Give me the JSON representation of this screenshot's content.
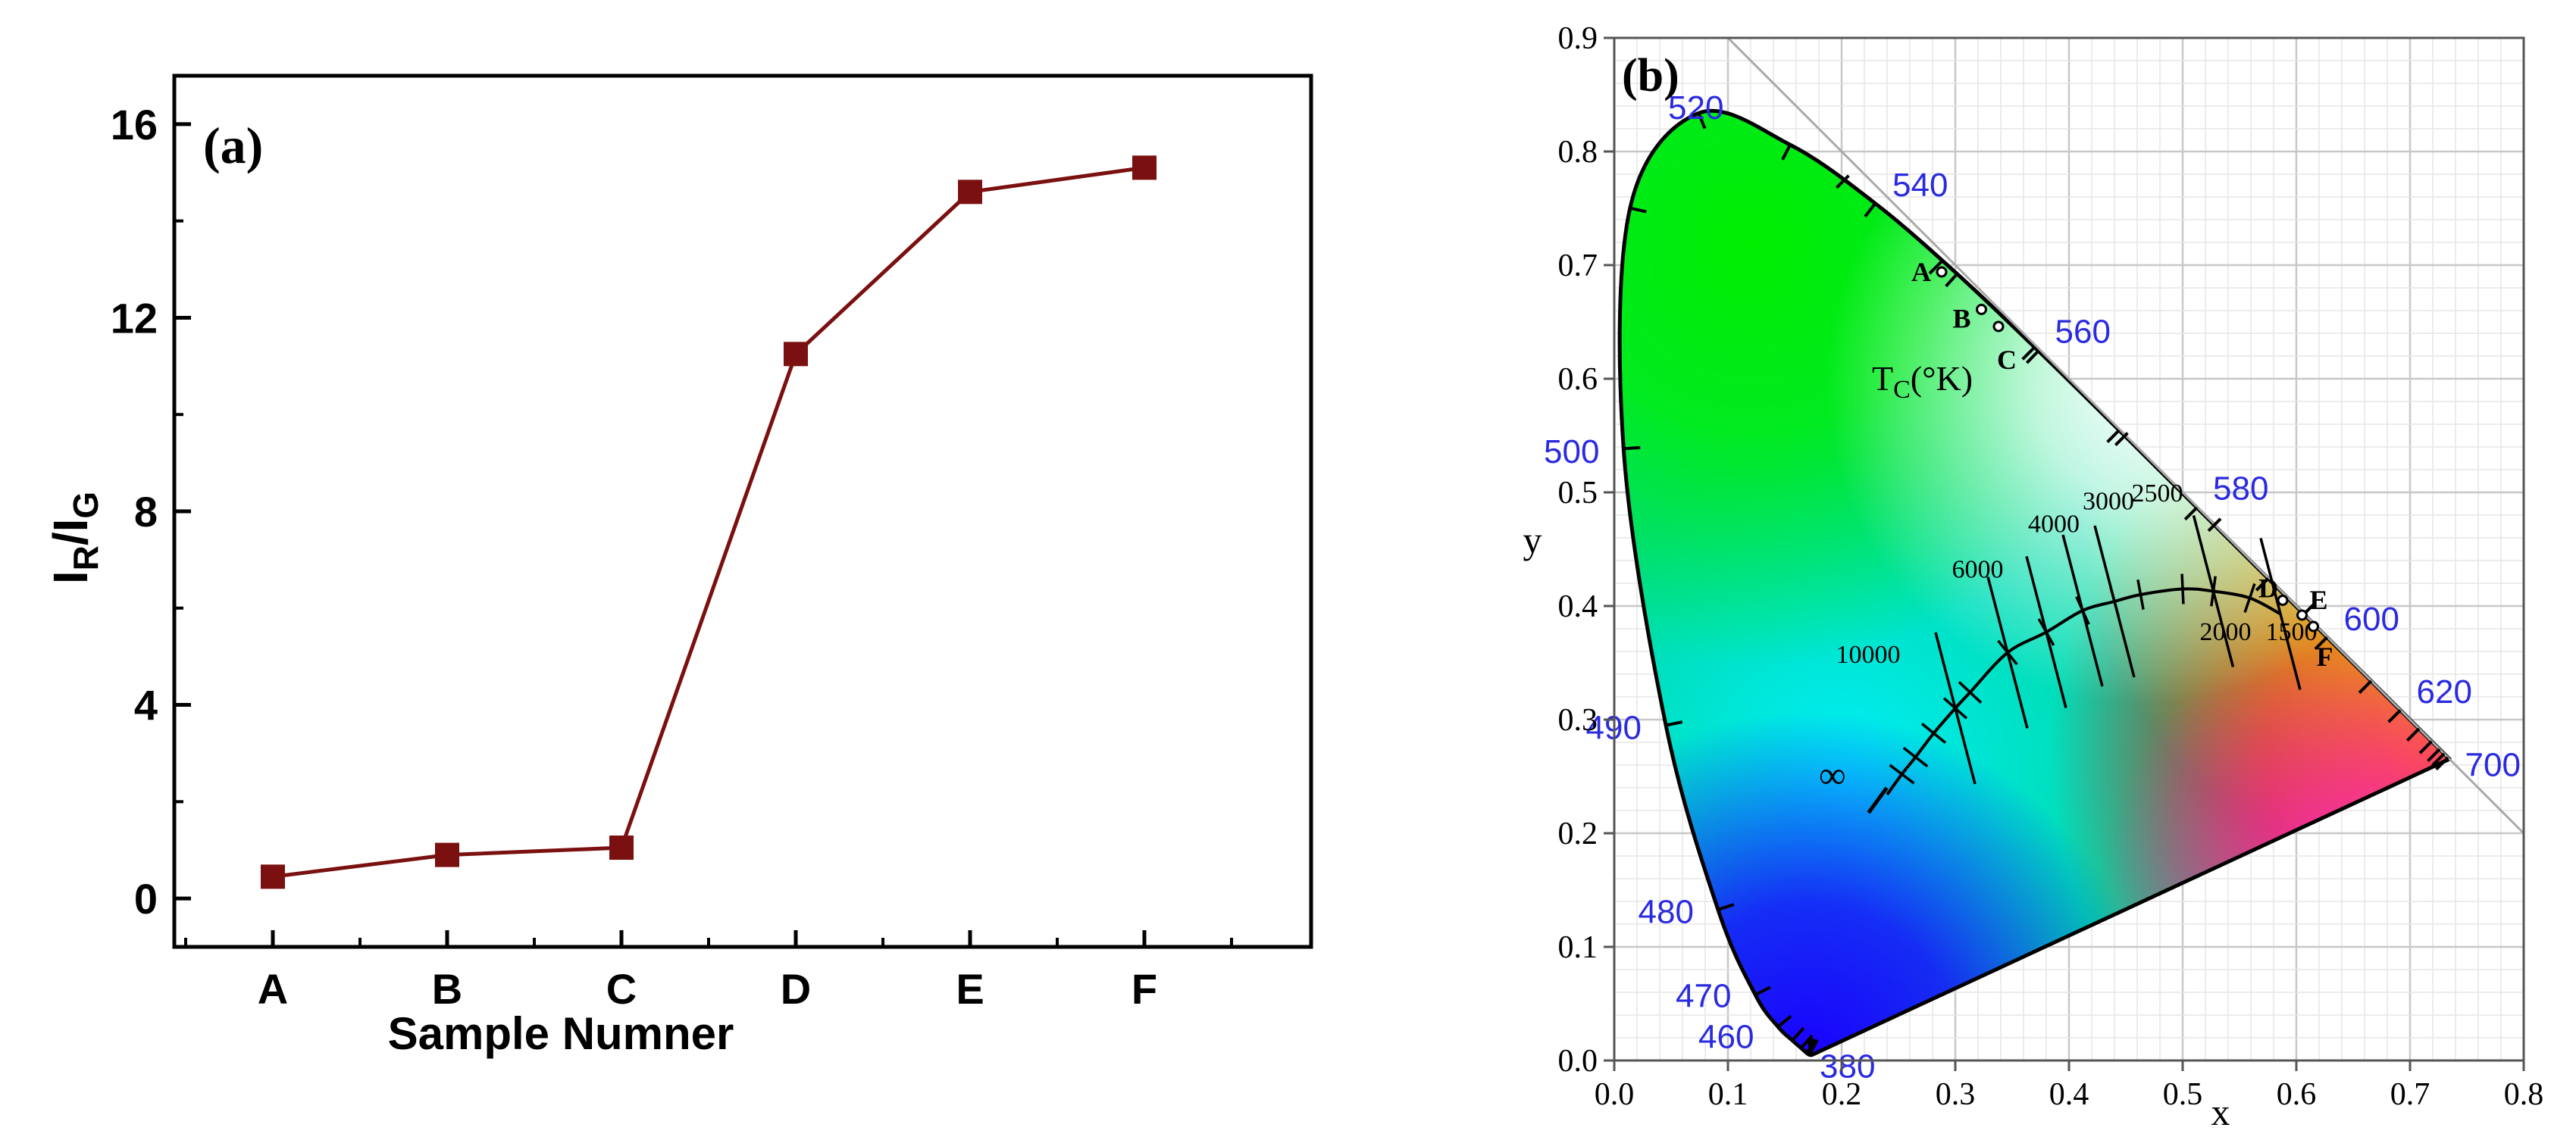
{
  "chart_data": [
    {
      "type": "line",
      "panel_label": "(a)",
      "xlabel": "Sample  Numner",
      "ylabel_main": "I",
      "ylabel_sub1": "R",
      "ylabel_slash": "/I",
      "ylabel_sub2": "G",
      "categories": [
        "A",
        "B",
        "C",
        "D",
        "E",
        "F"
      ],
      "series": [
        {
          "values": [
            0.45,
            0.9,
            1.05,
            11.25,
            14.6,
            15.1
          ],
          "color": "#7a1010"
        }
      ],
      "ylim": [
        -1,
        17
      ],
      "yticks": [
        0,
        4,
        8,
        12,
        16
      ],
      "ytick_labels": [
        "0",
        "4",
        "8",
        "12",
        "16"
      ],
      "grid": false
    },
    {
      "type": "scatter",
      "panel_label": "(b)",
      "xlabel": "x",
      "ylabel": "y",
      "xlim": [
        0.0,
        0.8
      ],
      "ylim": [
        0.0,
        0.9
      ],
      "xticks": [
        "0.0",
        "0.1",
        "0.2",
        "0.3",
        "0.4",
        "0.5",
        "0.6",
        "0.7",
        "0.8"
      ],
      "yticks": [
        "0.0",
        "0.1",
        "0.2",
        "0.3",
        "0.4",
        "0.5",
        "0.6",
        "0.7",
        "0.8",
        "0.9"
      ],
      "grid": true,
      "points": [
        {
          "label": "A",
          "x": 0.288,
          "y": 0.694
        },
        {
          "label": "B",
          "x": 0.323,
          "y": 0.661
        },
        {
          "label": "C",
          "x": 0.338,
          "y": 0.646
        },
        {
          "label": "D",
          "x": 0.588,
          "y": 0.405
        },
        {
          "label": "E",
          "x": 0.605,
          "y": 0.392
        },
        {
          "label": "F",
          "x": 0.615,
          "y": 0.382
        }
      ],
      "wavelength_labels": [
        {
          "text": "520",
          "x": 0.074,
          "y": 0.834
        },
        {
          "text": "540",
          "x": 0.23,
          "y": 0.754
        },
        {
          "text": "560",
          "x": 0.373,
          "y": 0.625
        },
        {
          "text": "580",
          "x": 0.512,
          "y": 0.487
        },
        {
          "text": "600",
          "x": 0.627,
          "y": 0.372
        },
        {
          "text": "620",
          "x": 0.691,
          "y": 0.308
        },
        {
          "text": "700",
          "x": 0.735,
          "y": 0.265
        },
        {
          "text": "500",
          "x": 0.008,
          "y": 0.538
        },
        {
          "text": "490",
          "x": 0.045,
          "y": 0.295
        },
        {
          "text": "480",
          "x": 0.091,
          "y": 0.133
        },
        {
          "text": "470",
          "x": 0.124,
          "y": 0.059
        },
        {
          "text": "460",
          "x": 0.144,
          "y": 0.023
        },
        {
          "text": "380",
          "x": 0.174,
          "y": 0.005
        }
      ],
      "planckian": {
        "title_main": "T",
        "title_sub": "C",
        "title_rest": "(°K)",
        "infinity_label": "∞",
        "temp_labels": [
          "10000",
          "6000",
          "4000",
          "3000",
          "2500",
          "2000",
          "1500"
        ]
      },
      "colors": {
        "spectral_green": "#00ee00",
        "spectral_red": "#ff0000",
        "spectral_blue": "#1a00ff",
        "wavelength_text": "#2a2ae0"
      }
    }
  ]
}
